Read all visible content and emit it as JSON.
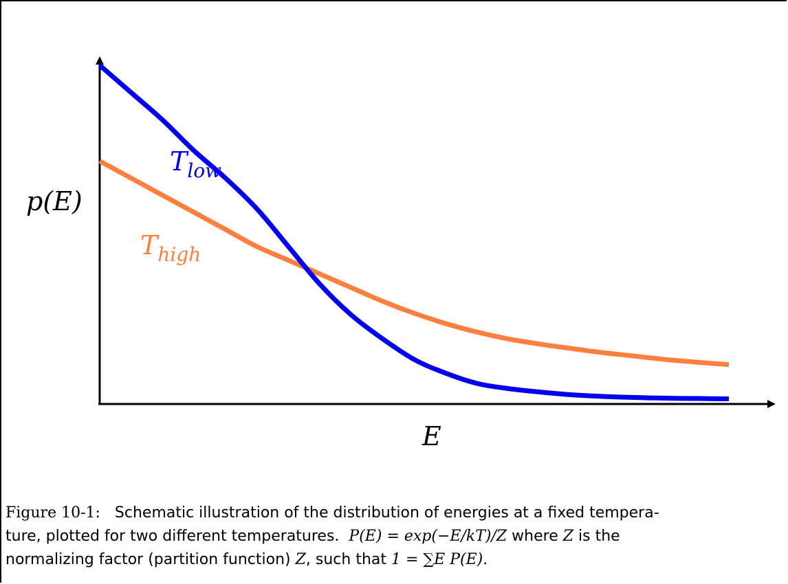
{
  "chart_data": {
    "type": "line",
    "xlabel": "E",
    "ylabel": "p(E)",
    "xlim": [
      0,
      10
    ],
    "ylim": [
      0,
      10
    ],
    "axes": "arrows",
    "grid": false,
    "ticks": false,
    "series": [
      {
        "name": "T_low",
        "label_base": "T",
        "label_sub": "low",
        "color": "#0000ee",
        "x": [
          0,
          0.5,
          1.0,
          1.5,
          2.0,
          2.5,
          3.0,
          3.5,
          4.0,
          4.5,
          5.0,
          5.5,
          6.0,
          6.5,
          7.0,
          7.5,
          8.0,
          8.5,
          9.0,
          9.5,
          10.0
        ],
        "y": [
          9.9,
          9.1,
          8.3,
          7.4,
          6.6,
          5.7,
          4.6,
          3.5,
          2.6,
          1.9,
          1.3,
          0.9,
          0.6,
          0.45,
          0.35,
          0.27,
          0.22,
          0.19,
          0.17,
          0.16,
          0.15
        ]
      },
      {
        "name": "T_high",
        "label_base": "T",
        "label_sub": "high",
        "color": "#ff7f3f",
        "x": [
          0,
          0.5,
          1.0,
          1.5,
          2.0,
          2.5,
          3.0,
          3.5,
          4.0,
          4.5,
          5.0,
          5.5,
          6.0,
          6.5,
          7.0,
          7.5,
          8.0,
          8.5,
          9.0,
          9.5,
          10.0
        ],
        "y": [
          7.1,
          6.6,
          6.1,
          5.6,
          5.1,
          4.6,
          4.2,
          3.8,
          3.4,
          3.0,
          2.65,
          2.35,
          2.1,
          1.9,
          1.75,
          1.62,
          1.5,
          1.4,
          1.3,
          1.22,
          1.15
        ]
      }
    ]
  },
  "caption": {
    "figure_label": "Figure 10-1:",
    "line1_text": "Schematic illustration of the distribution of energies at a fixed tempera-",
    "line2_text_a": "ture, plotted for two different temperatures.",
    "formula_1": "P(E) = exp(−E/kT)/Z",
    "line2_text_b": "where",
    "var_z": "Z",
    "line2_text_c": "is the",
    "line3_text_a": "normalizing factor (partition function)",
    "var_z2": "Z",
    "line3_text_b": ", such that",
    "formula_2": "1 = ∑E P(E)."
  }
}
